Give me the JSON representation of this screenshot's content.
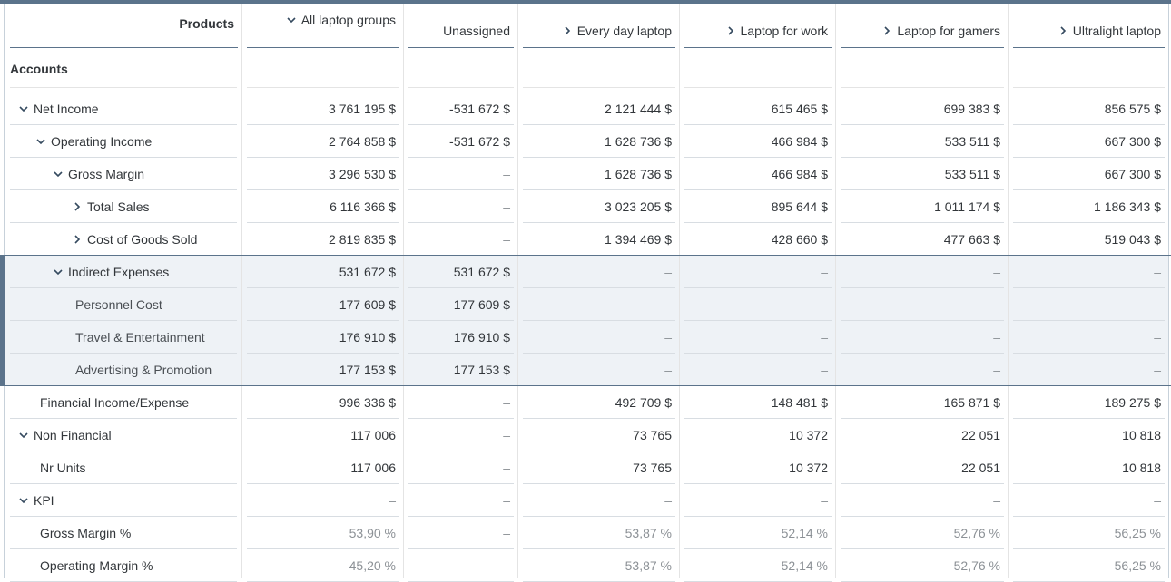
{
  "header": {
    "row_dim_label": "Products",
    "col_dim_label": "Accounts",
    "columns": [
      {
        "label": "All laptop groups",
        "chevron": "down"
      },
      {
        "label": "Unassigned",
        "chevron": "none"
      },
      {
        "label": "Every day laptop",
        "chevron": "right"
      },
      {
        "label": "Laptop for work",
        "chevron": "right"
      },
      {
        "label": "Laptop for gamers",
        "chevron": "right"
      },
      {
        "label": "Ultralight laptop",
        "chevron": "right"
      }
    ]
  },
  "rows": [
    {
      "label": "Net Income",
      "level": 0,
      "chevron": "down",
      "selected": false,
      "dim": false,
      "values": [
        "3 761 195 $",
        "-531 672 $",
        "2 121 444 $",
        "615 465 $",
        "699 383 $",
        "856 575 $"
      ]
    },
    {
      "label": "Operating Income",
      "level": 1,
      "chevron": "down",
      "selected": false,
      "dim": false,
      "values": [
        "2 764 858 $",
        "-531 672 $",
        "1 628 736 $",
        "466 984 $",
        "533 511 $",
        "667 300 $"
      ]
    },
    {
      "label": "Gross Margin",
      "level": 2,
      "chevron": "down",
      "selected": false,
      "dim": false,
      "values": [
        "3 296 530 $",
        "–",
        "1 628 736 $",
        "466 984 $",
        "533 511 $",
        "667 300 $"
      ]
    },
    {
      "label": "Total Sales",
      "level": 3,
      "chevron": "right",
      "selected": false,
      "dim": false,
      "values": [
        "6 116 366 $",
        "–",
        "3 023 205 $",
        "895 644 $",
        "1 011 174 $",
        "1 186 343 $"
      ]
    },
    {
      "label": "Cost of Goods Sold",
      "level": 3,
      "chevron": "right",
      "selected": false,
      "dim": false,
      "values": [
        "2 819 835 $",
        "–",
        "1 394 469 $",
        "428 660 $",
        "477 663 $",
        "519 043 $"
      ]
    },
    {
      "label": "Indirect Expenses",
      "level": 2,
      "chevron": "down",
      "selected": true,
      "dim": false,
      "values": [
        "531 672 $",
        "531 672 $",
        "–",
        "–",
        "–",
        "–"
      ]
    },
    {
      "label": "Personnel Cost",
      "level": 3,
      "chevron": "none",
      "selected": true,
      "dim": false,
      "values": [
        "177 609 $",
        "177 609 $",
        "–",
        "–",
        "–",
        "–"
      ]
    },
    {
      "label": "Travel & Entertainment",
      "level": 3,
      "chevron": "none",
      "selected": true,
      "dim": false,
      "values": [
        "176 910 $",
        "176 910 $",
        "–",
        "–",
        "–",
        "–"
      ]
    },
    {
      "label": "Advertising & Promotion",
      "level": 3,
      "chevron": "none",
      "selected": true,
      "dim": false,
      "values": [
        "177 153 $",
        "177 153 $",
        "–",
        "–",
        "–",
        "–"
      ]
    },
    {
      "label": "Financial Income/Expense",
      "level": 1,
      "chevron": "none",
      "selected": false,
      "dim": false,
      "values": [
        "996 336 $",
        "–",
        "492 709 $",
        "148 481 $",
        "165 871 $",
        "189 275 $"
      ]
    },
    {
      "label": "Non Financial",
      "level": 0,
      "chevron": "down",
      "selected": false,
      "dim": false,
      "values": [
        "117 006",
        "–",
        "73 765",
        "10 372",
        "22 051",
        "10 818"
      ]
    },
    {
      "label": "Nr Units",
      "level": 1,
      "chevron": "none",
      "selected": false,
      "dim": false,
      "values": [
        "117 006",
        "–",
        "73 765",
        "10 372",
        "22 051",
        "10 818"
      ]
    },
    {
      "label": "KPI",
      "level": 0,
      "chevron": "down",
      "selected": false,
      "dim": true,
      "values": [
        "–",
        "–",
        "–",
        "–",
        "–",
        "–"
      ]
    },
    {
      "label": "Gross Margin %",
      "level": 1,
      "chevron": "none",
      "selected": false,
      "dim": true,
      "values": [
        "53,90 %",
        "–",
        "53,87 %",
        "52,14 %",
        "52,76 %",
        "56,25 %"
      ]
    },
    {
      "label": "Operating Margin %",
      "level": 1,
      "chevron": "none",
      "selected": false,
      "dim": true,
      "values": [
        "45,20 %",
        "–",
        "53,87 %",
        "52,14 %",
        "52,76 %",
        "56,25 %"
      ]
    }
  ],
  "colors": {
    "accent": "#5b738b",
    "selected_bg": "#eef2f6",
    "text": "#32363a",
    "dim_text": "#8c9196"
  }
}
